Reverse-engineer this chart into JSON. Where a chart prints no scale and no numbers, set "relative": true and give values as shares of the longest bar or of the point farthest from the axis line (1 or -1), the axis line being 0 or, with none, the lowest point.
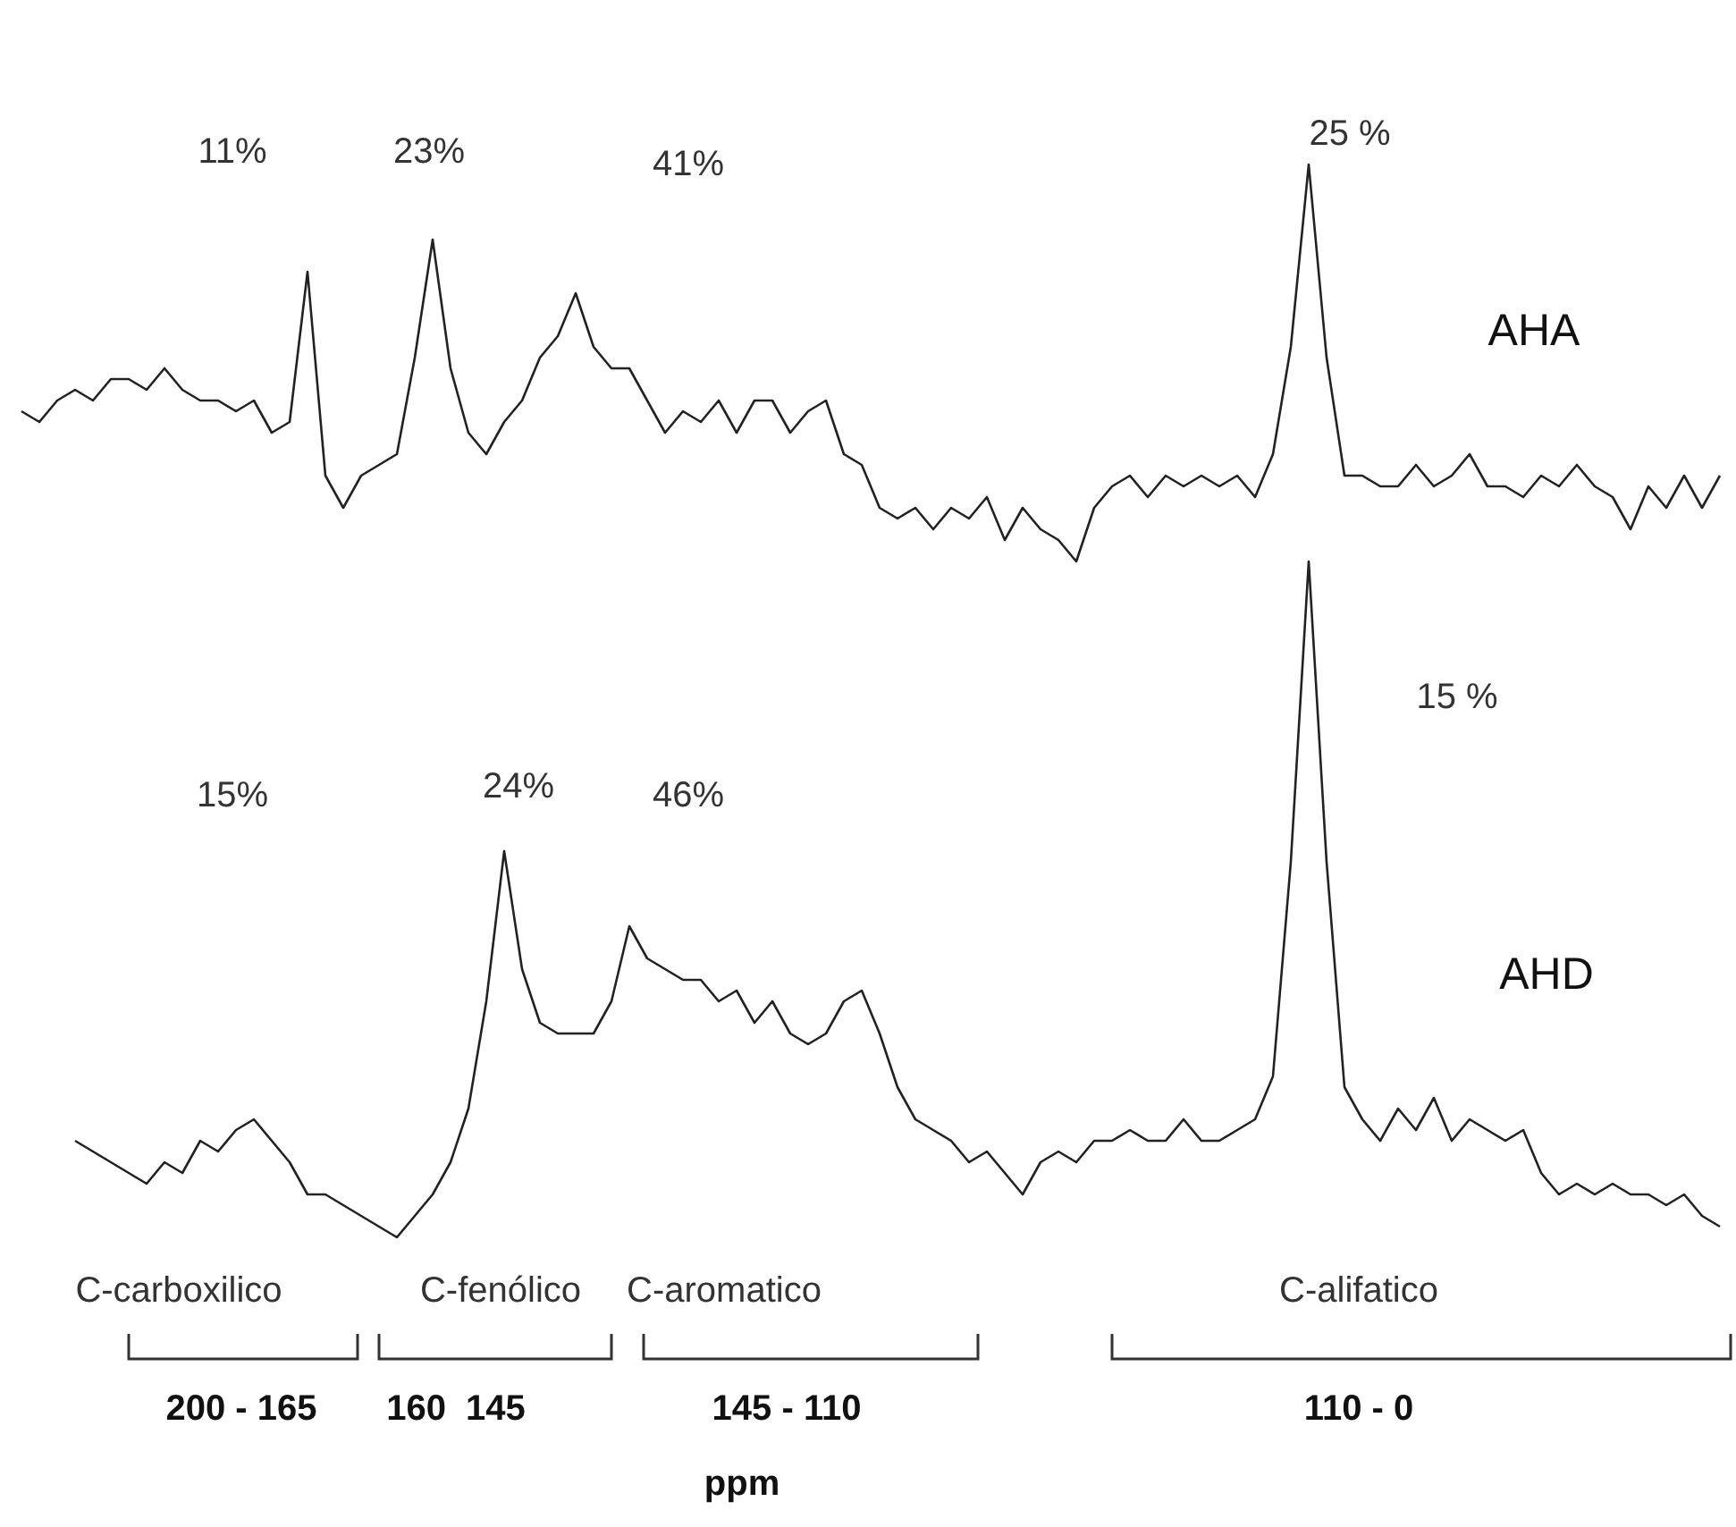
{
  "chart_data": {
    "type": "line",
    "relative": true,
    "marker": "none",
    "categories": [
      null,
      null,
      null,
      null,
      null,
      null,
      null,
      null,
      null,
      null,
      null,
      null,
      null,
      null,
      null,
      null,
      null,
      null,
      null,
      null,
      null,
      null,
      null,
      null,
      null,
      null,
      null,
      null,
      null,
      null,
      null,
      null,
      null,
      null,
      null,
      null,
      null,
      null,
      null,
      null,
      null,
      null,
      null,
      null,
      null,
      null,
      null,
      null,
      null,
      null,
      null,
      null,
      null,
      null,
      null,
      null,
      null,
      null,
      null,
      null,
      null,
      null,
      null,
      null,
      null,
      null,
      null,
      null,
      null,
      null,
      null,
      null,
      null,
      null,
      null,
      null,
      null,
      null,
      null,
      null,
      null,
      null,
      null,
      null,
      null,
      null,
      null,
      null,
      null,
      null,
      null,
      null,
      null,
      null,
      null,
      null
    ],
    "series": [
      {
        "name": "AHA",
        "color": "#222222",
        "values": [
          0.77,
          0.76,
          0.78,
          0.79,
          0.78,
          0.8,
          0.8,
          0.79,
          0.81,
          0.79,
          0.78,
          0.78,
          0.77,
          0.78,
          0.75,
          0.76,
          0.9,
          0.71,
          0.68,
          0.71,
          0.72,
          0.73,
          0.82,
          0.93,
          0.81,
          0.75,
          0.73,
          0.76,
          0.78,
          0.82,
          0.84,
          0.88,
          0.83,
          0.81,
          0.81,
          0.78,
          0.75,
          0.77,
          0.76,
          0.78,
          0.75,
          0.78,
          0.78,
          0.75,
          0.77,
          0.78,
          0.73,
          0.72,
          0.68,
          0.67,
          0.68,
          0.66,
          0.68,
          0.67,
          0.69,
          0.65,
          0.68,
          0.66,
          0.65,
          0.63,
          0.68,
          0.7,
          0.71,
          0.69,
          0.71,
          0.7,
          0.71,
          0.7,
          0.71,
          0.69,
          0.73,
          0.83,
          1,
          0.82,
          0.71,
          0.71,
          0.7,
          0.7,
          0.72,
          0.7,
          0.71,
          0.73,
          0.7,
          0.7,
          0.69,
          0.71,
          0.7,
          0.72,
          0.7,
          0.69,
          0.66,
          0.7,
          0.68,
          0.71,
          0.68,
          0.71
        ]
      },
      {
        "name": "AHD",
        "color": "#222222",
        "values": [
          null,
          null,
          null,
          0.09,
          0.08,
          0.07,
          0.06,
          0.05,
          0.07,
          0.06,
          0.09,
          0.08,
          0.1,
          0.11,
          0.09,
          0.07,
          0.04,
          0.04,
          0.03,
          0.02,
          0.01,
          0,
          0.02,
          0.04,
          0.07,
          0.12,
          0.22,
          0.36,
          0.25,
          0.2,
          0.19,
          0.19,
          0.19,
          0.22,
          0.29,
          0.26,
          0.25,
          0.24,
          0.24,
          0.22,
          0.23,
          0.2,
          0.22,
          0.19,
          0.18,
          0.19,
          0.22,
          0.23,
          0.19,
          0.14,
          0.11,
          0.1,
          0.09,
          0.07,
          0.08,
          0.06,
          0.04,
          0.07,
          0.08,
          0.07,
          0.09,
          0.09,
          0.1,
          0.09,
          0.09,
          0.11,
          0.09,
          0.09,
          0.1,
          0.11,
          0.15,
          0.35,
          0.63,
          0.35,
          0.14,
          0.11,
          0.09,
          0.12,
          0.1,
          0.13,
          0.09,
          0.11,
          0.1,
          0.09,
          0.1,
          0.06,
          0.04,
          0.05,
          0.04,
          0.05,
          0.04,
          0.04,
          0.03,
          0.04,
          0.02,
          0.01
        ]
      }
    ],
    "annotations": [
      "11%",
      "23%",
      "41%",
      "25 %",
      "15%",
      "24%",
      "46%",
      "15 %",
      "C-carboxilico",
      "C-fenólico",
      "C-aromatico",
      "C-alifatico",
      "200 - 165",
      "160  145",
      "145 - 110",
      "110 - 0",
      "ppm"
    ]
  }
}
